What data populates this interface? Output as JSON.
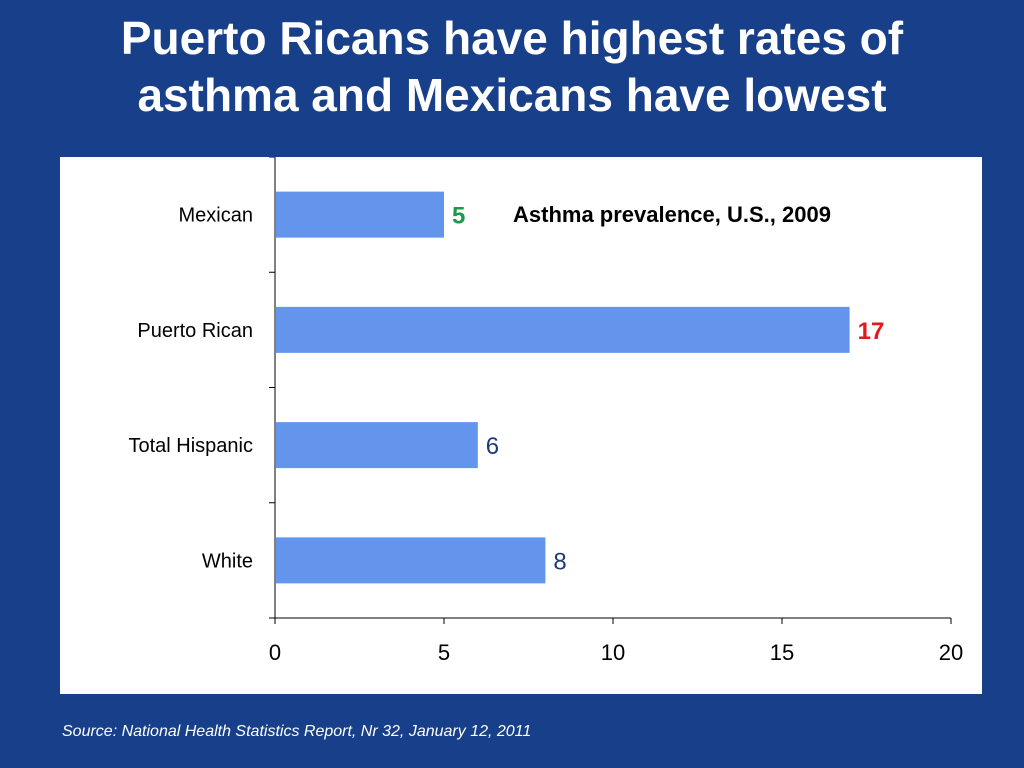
{
  "slide": {
    "title_line1": "Puerto Ricans have highest rates of",
    "title_line2": "asthma and Mexicans have lowest",
    "source": "Source: National Health Statistics Report, Nr 32, January 12, 2011"
  },
  "colors": {
    "background": "#173f8a",
    "bar": "#6495ed",
    "label_lowest": "#1a9a4a",
    "label_highest": "#e31a1c",
    "label_default": "#1f3a7a"
  },
  "chart_data": {
    "type": "bar",
    "orientation": "horizontal",
    "title": "Asthma prevalence, U.S., 2009",
    "categories": [
      "Mexican",
      "Puerto Rican",
      "Total Hispanic",
      "White"
    ],
    "values": [
      5,
      17,
      6,
      8
    ],
    "data_labels": [
      "5",
      "17",
      "6",
      "8"
    ],
    "label_colors": [
      "#1a9a4a",
      "#e31a1c",
      "#1f3a7a",
      "#1f3a7a"
    ],
    "label_bold": [
      true,
      true,
      false,
      false
    ],
    "xlim": [
      0,
      20
    ],
    "x_ticks": [
      0,
      5,
      10,
      15,
      20
    ],
    "x_tick_labels": [
      "0",
      "5",
      "10",
      "15",
      "20"
    ],
    "grid": false,
    "legend": "none"
  }
}
